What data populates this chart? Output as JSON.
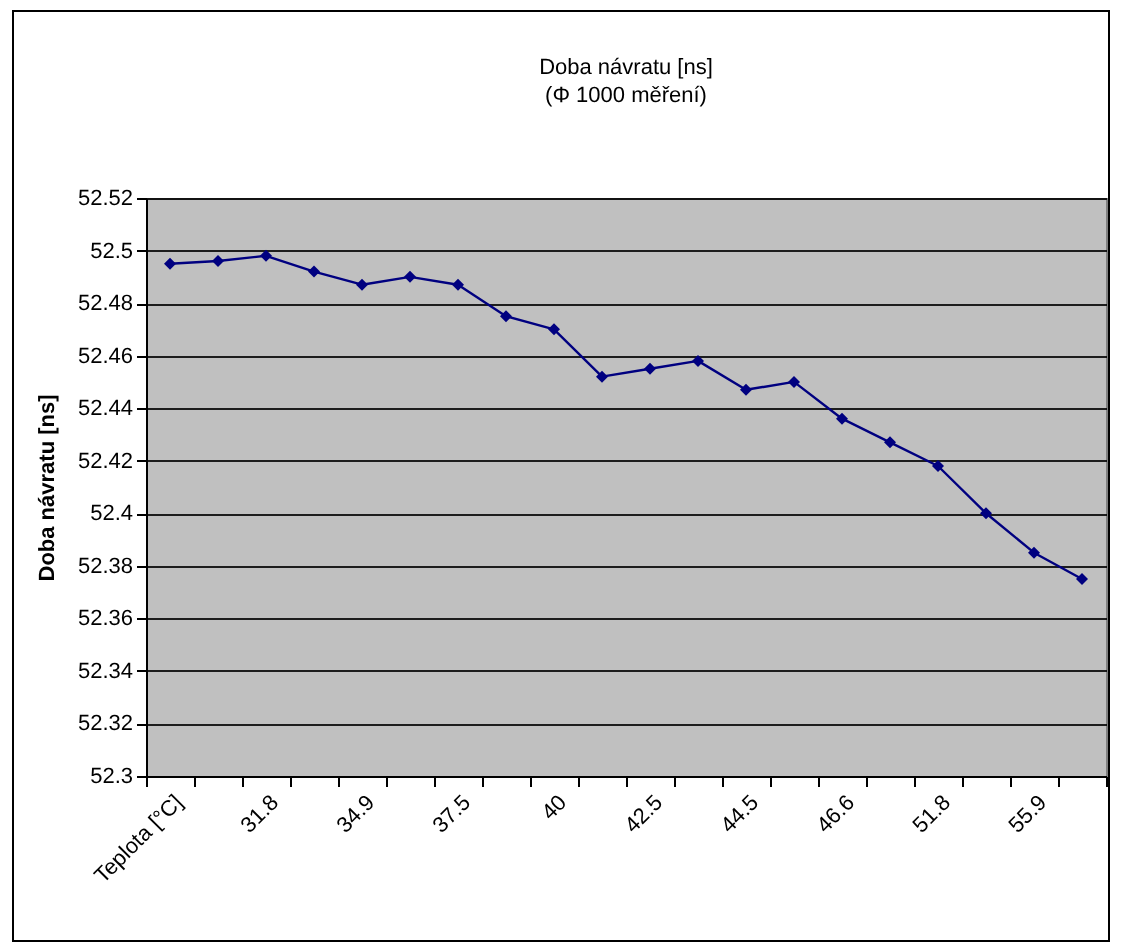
{
  "chart_data": {
    "type": "line",
    "title": "Doba návratu [ns]",
    "subtitle": "(Φ 1000 měření)",
    "ylabel": "Doba návratu [ns]",
    "categories": [
      "Teplota [°C]",
      null,
      "31.8",
      null,
      "34.9",
      null,
      "37.5",
      null,
      "40",
      null,
      "42.5",
      null,
      "44.5",
      null,
      "46.6",
      null,
      "51.8",
      null,
      "55.9",
      null
    ],
    "series": [
      {
        "color": "#000080",
        "values": [
          52.495,
          52.496,
          52.498,
          52.492,
          52.487,
          52.49,
          52.487,
          52.475,
          52.47,
          52.452,
          52.455,
          52.458,
          52.447,
          52.45,
          52.436,
          52.427,
          52.418,
          52.4,
          52.385,
          52.375
        ]
      }
    ],
    "ylim": [
      52.3,
      52.52
    ],
    "yticks": [
      52.3,
      52.32,
      52.34,
      52.36,
      52.38,
      52.4,
      52.42,
      52.44,
      52.46,
      52.48,
      52.5,
      52.52
    ],
    "grid": "y",
    "marker": "diamond",
    "line_style": "solid"
  }
}
